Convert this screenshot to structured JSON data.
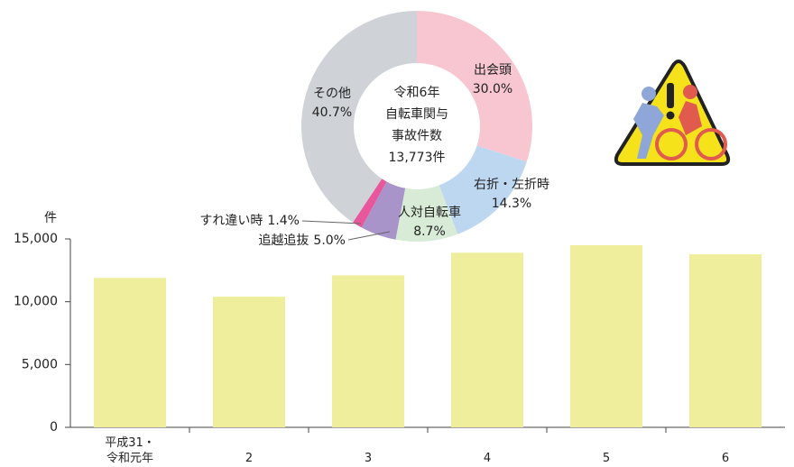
{
  "chart_data": [
    {
      "type": "bar",
      "y_label": "件",
      "categories": [
        "平成31・\n令和元年",
        "2",
        "3",
        "4",
        "5",
        "6"
      ],
      "values": [
        11900,
        10400,
        12100,
        13900,
        14500,
        13773
      ],
      "color": "#efee9d",
      "ylim": [
        0,
        15000
      ],
      "yticks": [
        0,
        {
          "value": 5000,
          "label": "5,000"
        },
        {
          "value": 10000,
          "label": "10,000"
        },
        {
          "value": 15000,
          "label": "15,000"
        }
      ]
    },
    {
      "type": "pie",
      "center_text": [
        "令和6年",
        "自転車関与",
        "事故件数",
        "13,773件"
      ],
      "categories": [
        "出会頭",
        "右折・左折時",
        "人対自転車",
        "追越追抜",
        "すれ違い時",
        "その他"
      ],
      "values": [
        30.0,
        14.3,
        8.7,
        5.0,
        1.4,
        40.7
      ],
      "value_labels": [
        "30.0%",
        "14.3%",
        "8.7%",
        "5.0%",
        "1.4%",
        "40.7%"
      ],
      "colors": [
        "#f7c6d0",
        "#bdd7f0",
        "#d7ebd6",
        "#a894c9",
        "#e8579c",
        "#cfd3d8"
      ]
    }
  ]
}
